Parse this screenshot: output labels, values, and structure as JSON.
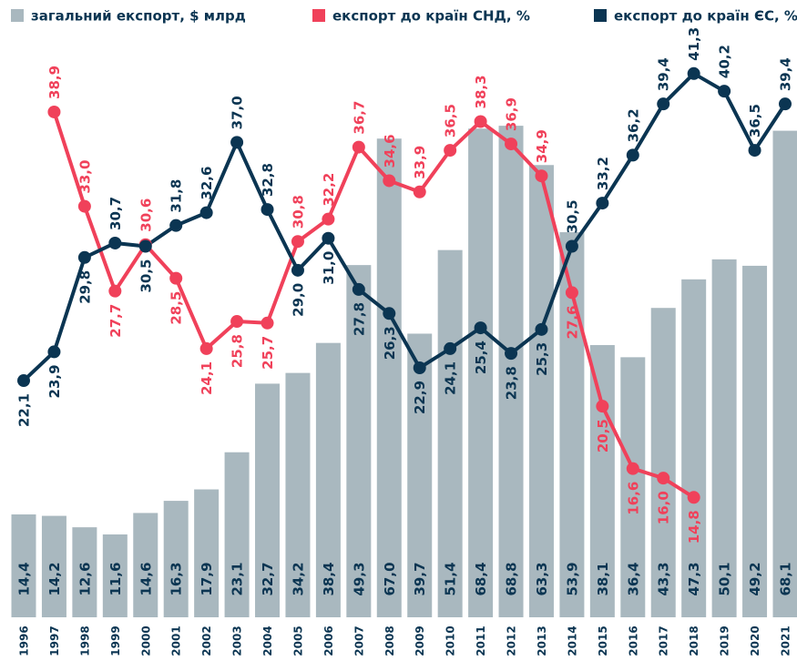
{
  "chart_data": {
    "type": "bar",
    "categories": [
      "1996",
      "1997",
      "1998",
      "1999",
      "2000",
      "2001",
      "2002",
      "2003",
      "2004",
      "2005",
      "2006",
      "2007",
      "2008",
      "2009",
      "2010",
      "2011",
      "2012",
      "2013",
      "2014",
      "2015",
      "2016",
      "2017",
      "2018",
      "2019",
      "2020",
      "2021"
    ],
    "ylim": [
      0,
      86.4
    ],
    "y2lim": [
      7.3,
      45.9
    ],
    "series": [
      {
        "name": "загальний експорт, $ млрд",
        "type": "bar",
        "color": "#a9b8bf",
        "values": [
          14.4,
          14.2,
          12.6,
          11.6,
          14.6,
          16.3,
          17.9,
          23.1,
          32.7,
          34.2,
          38.4,
          49.3,
          67.0,
          39.7,
          51.4,
          68.4,
          68.8,
          63.3,
          53.9,
          38.1,
          36.4,
          43.3,
          47.3,
          50.1,
          49.2,
          68.1
        ],
        "value_labels": [
          "14,4",
          "14,2",
          "12,6",
          "11,6",
          "14,6",
          "16,3",
          "17,9",
          "23,1",
          "32,7",
          "34,2",
          "38,4",
          "49,3",
          "67,0",
          "39,7",
          "51,4",
          "68,4",
          "68,8",
          "63,3",
          "53,9",
          "38,1",
          "36,4",
          "43,3",
          "47,3",
          "50,1",
          "49,2",
          "68,1"
        ]
      },
      {
        "name": "експорт до країн СНД, %",
        "type": "line",
        "axis": "y2",
        "color": "#f0415a",
        "values": [
          null,
          38.9,
          33.0,
          27.7,
          30.6,
          28.5,
          24.1,
          25.8,
          25.7,
          30.8,
          32.2,
          36.7,
          34.6,
          33.9,
          36.5,
          38.3,
          36.9,
          34.9,
          27.6,
          20.5,
          16.6,
          16.0,
          14.8,
          null,
          null,
          null
        ],
        "value_labels": [
          null,
          "38,9",
          "33,0",
          "27,7",
          "30,6",
          "28,5",
          "24,1",
          "25,8",
          "25,7",
          "30,8",
          "32,2",
          "36,7",
          "34,6",
          "33,9",
          "36,5",
          "38,3",
          "36,9",
          "34,9",
          "27,6",
          "20,5",
          "16,6",
          "16,0",
          "14,8",
          null,
          null,
          null
        ]
      },
      {
        "name": "експорт до країн ЄС, %",
        "type": "line",
        "axis": "y2",
        "color": "#0b3552",
        "values": [
          22.1,
          23.9,
          29.8,
          30.7,
          30.5,
          31.8,
          32.6,
          37.0,
          32.8,
          29.0,
          31.0,
          27.8,
          26.3,
          22.9,
          24.1,
          25.4,
          23.8,
          25.3,
          30.5,
          33.2,
          36.2,
          39.4,
          41.3,
          40.2,
          36.5,
          39.4
        ],
        "value_labels": [
          "22,1",
          "23,9",
          "29,8",
          "30,7",
          "30,5",
          "31,8",
          "32,6",
          "37,0",
          "32,8",
          "29,0",
          "31,0",
          "27,8",
          "26,3",
          "22,9",
          "24,1",
          "25,4",
          "23,8",
          "25,3",
          "30,5",
          "33,2",
          "36,2",
          "39,4",
          "41,3",
          "40,2",
          "36,5",
          "39,4"
        ]
      }
    ]
  }
}
